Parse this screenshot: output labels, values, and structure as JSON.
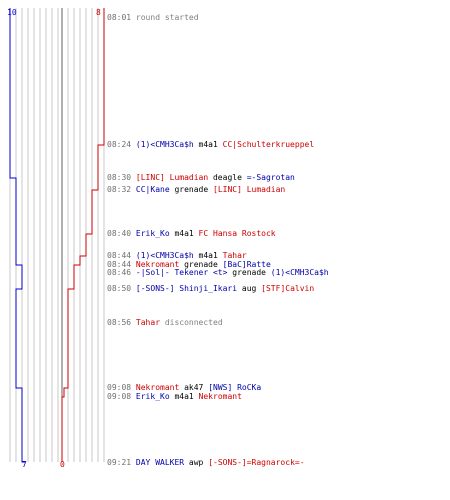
{
  "colors": {
    "team_a": "#0000cc",
    "team_b": "#cc0000",
    "grid": "#c8c8c8",
    "axis": "#606060"
  },
  "score": {
    "team_a_start": "10",
    "team_b_start": "8",
    "team_a_end": "7",
    "team_b_end": "0"
  },
  "events": [
    {
      "time": "08:01",
      "parts": [
        {
          "text": "round started",
          "color": "ann"
        }
      ]
    },
    {
      "time": "08:24",
      "parts": [
        {
          "text": "(1)<CMH3Ca$h",
          "color": "blue"
        },
        {
          "text": " m4a1 ",
          "color": "neutral"
        },
        {
          "text": "CC|Schulterkrueppel",
          "color": "red"
        }
      ]
    },
    {
      "time": "08:30",
      "parts": [
        {
          "text": "[LINC] Lumadian",
          "color": "red"
        },
        {
          "text": " deagle ",
          "color": "neutral"
        },
        {
          "text": "=-Sagrotan",
          "color": "blue"
        }
      ]
    },
    {
      "time": "08:32",
      "parts": [
        {
          "text": "CC|Kane",
          "color": "blue"
        },
        {
          "text": " grenade ",
          "color": "neutral"
        },
        {
          "text": "[LINC] Lumadian",
          "color": "red"
        }
      ]
    },
    {
      "time": "08:40",
      "parts": [
        {
          "text": "Erik_Ko",
          "color": "blue"
        },
        {
          "text": " m4a1 ",
          "color": "neutral"
        },
        {
          "text": "FC Hansa Rostock",
          "color": "red"
        }
      ]
    },
    {
      "time": "08:44",
      "parts": [
        {
          "text": "(1)<CMH3Ca$h",
          "color": "blue"
        },
        {
          "text": " m4a1 ",
          "color": "neutral"
        },
        {
          "text": "Tahar",
          "color": "red"
        }
      ]
    },
    {
      "time": "08:44",
      "parts": [
        {
          "text": "Nekromant",
          "color": "red"
        },
        {
          "text": " grenade ",
          "color": "neutral"
        },
        {
          "text": "[BaC]Ratte",
          "color": "blue"
        }
      ]
    },
    {
      "time": "08:46",
      "parts": [
        {
          "text": "-|Sol|- Tekener <t>",
          "color": "blue"
        },
        {
          "text": " grenade ",
          "color": "neutral"
        },
        {
          "text": "(1)<CMH3Ca$h",
          "color": "blue"
        }
      ]
    },
    {
      "time": "08:50",
      "parts": [
        {
          "text": "[-SONS-] Shinji_Ikari",
          "color": "blue"
        },
        {
          "text": " aug ",
          "color": "neutral"
        },
        {
          "text": "[STF]Calvin",
          "color": "red"
        }
      ]
    },
    {
      "time": "08:56",
      "parts": [
        {
          "text": "Tahar",
          "color": "red"
        },
        {
          "text": " disconnected",
          "color": "ann"
        }
      ]
    },
    {
      "time": "09:08",
      "parts": [
        {
          "text": "Nekromant",
          "color": "red"
        },
        {
          "text": " ak47 ",
          "color": "neutral"
        },
        {
          "text": "[NWS] RoCKa",
          "color": "blue"
        }
      ]
    },
    {
      "time": "09:08",
      "parts": [
        {
          "text": "Erik_Ko",
          "color": "blue"
        },
        {
          "text": " m4a1 ",
          "color": "neutral"
        },
        {
          "text": "Nekromant",
          "color": "red"
        }
      ]
    },
    {
      "time": "09:21",
      "parts": [
        {
          "text": "DAY WALKER",
          "color": "blue"
        },
        {
          "text": " awp ",
          "color": "neutral"
        },
        {
          "text": "[-SONS-]=Ragnarock=-",
          "color": "red"
        }
      ]
    }
  ]
}
